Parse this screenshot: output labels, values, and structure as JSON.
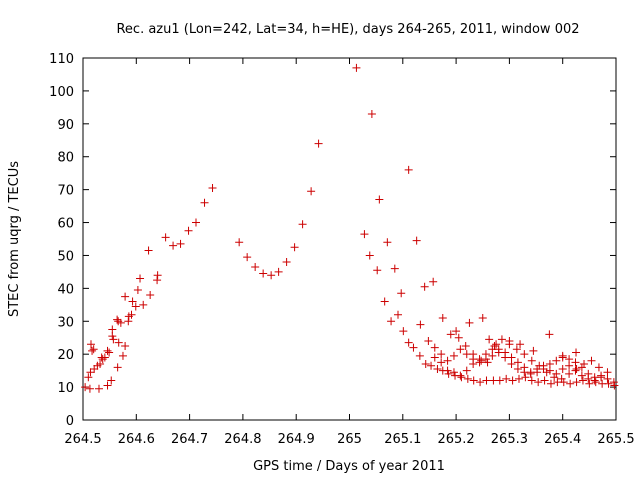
{
  "chart_data": {
    "type": "scatter",
    "title": "Rec. azu1 (Lon=242, Lat=34, h=HE), days 264-265, 2011, window 002",
    "xlabel": "GPS time / Days of year 2011",
    "ylabel": "STEC from uqrg / TECUs",
    "xlim": [
      264.5,
      265.5
    ],
    "ylim": [
      0,
      110
    ],
    "xticks": [
      "264.5",
      "264.6",
      "264.7",
      "264.8",
      "264.9",
      "265",
      "265.1",
      "265.2",
      "265.3",
      "265.4",
      "265.5"
    ],
    "yticks": [
      "0",
      "10",
      "20",
      "30",
      "40",
      "50",
      "60",
      "70",
      "80",
      "90",
      "100",
      "110"
    ],
    "grid": false,
    "legend": "none",
    "marker": "+",
    "color": "#cc0000",
    "series": [
      {
        "x": [
          264.504,
          264.513,
          264.517,
          264.527,
          264.535,
          264.546,
          264.555,
          264.566,
          264.579,
          264.593,
          264.607,
          264.623,
          264.64,
          264.655,
          264.669,
          264.683,
          264.698,
          264.712,
          264.728,
          264.743,
          264.793,
          264.808,
          264.823,
          264.838,
          264.853,
          264.867,
          264.882,
          264.897,
          264.912,
          264.928,
          264.942,
          265.013,
          265.028,
          265.042,
          265.056,
          265.071,
          265.085,
          265.097,
          265.111,
          265.126,
          265.141,
          265.157,
          264.514,
          264.52,
          264.537,
          264.549,
          264.557,
          264.564,
          264.571,
          264.586,
          264.599,
          264.613,
          264.626,
          264.639,
          264.515,
          264.53,
          264.546,
          264.555,
          264.567,
          264.579,
          264.591,
          264.603,
          264.51,
          264.521,
          264.532,
          264.541,
          264.553,
          264.565,
          264.575,
          264.585,
          265.038,
          265.052,
          265.066,
          265.078,
          265.091,
          265.101,
          265.111,
          265.12,
          265.132,
          265.143,
          265.153,
          265.165,
          265.175,
          265.186,
          265.198,
          265.21,
          265.222,
          265.233,
          265.245,
          265.257,
          265.27,
          265.282,
          265.294,
          265.306,
          265.318,
          265.33,
          265.342,
          265.354,
          265.366,
          265.378,
          265.39,
          265.402,
          265.414,
          265.426,
          265.438,
          265.45,
          265.462,
          265.474,
          265.486,
          265.497,
          265.133,
          265.148,
          265.16,
          265.172,
          265.184,
          265.196,
          265.208,
          265.22,
          265.232,
          265.244,
          265.256,
          265.268,
          265.28,
          265.292,
          265.304,
          265.316,
          265.328,
          265.34,
          265.352,
          265.364,
          265.376,
          265.388,
          265.4,
          265.412,
          265.424,
          265.436,
          265.448,
          265.46,
          265.472,
          265.484,
          265.16,
          265.172,
          265.184,
          265.196,
          265.208,
          265.22,
          265.232,
          265.244,
          265.256,
          265.268,
          265.28,
          265.292,
          265.304,
          265.316,
          265.328,
          265.34,
          265.352,
          265.364,
          265.376,
          265.388,
          265.4,
          265.412,
          265.424,
          265.436,
          265.448,
          265.46,
          265.472,
          265.484,
          265.496,
          265.19,
          265.205,
          265.218,
          265.232,
          265.247,
          265.259,
          265.272,
          265.286,
          265.3,
          265.314,
          265.328,
          265.342,
          265.356,
          265.37,
          265.384,
          265.398,
          265.412,
          265.426,
          265.44,
          265.454,
          265.468,
          265.175,
          265.2,
          265.225,
          265.25,
          265.262,
          265.275,
          265.3,
          265.32,
          265.345,
          265.375,
          265.4,
          265.425
        ],
        "y": [
          10.0,
          9.5,
          21.0,
          16.5,
          19.0,
          21.0,
          27.5,
          30.0,
          37.5,
          36.0,
          43.0,
          51.5,
          44.0,
          55.5,
          53.0,
          53.5,
          57.5,
          60.0,
          66.0,
          70.5,
          54.0,
          49.5,
          46.5,
          44.5,
          44.0,
          45.0,
          48.0,
          52.5,
          59.5,
          69.5,
          84.0,
          107.0,
          56.5,
          93.0,
          67.0,
          54.0,
          46.0,
          38.5,
          76.0,
          54.5,
          40.5,
          42.0,
          14.5,
          21.5,
          18.5,
          20.5,
          24.5,
          30.5,
          29.5,
          31.5,
          34.5,
          35.0,
          38.0,
          42.5,
          23.0,
          9.5,
          10.5,
          25.5,
          23.5,
          22.5,
          32.0,
          39.5,
          13.0,
          15.5,
          17.0,
          19.0,
          12.0,
          16.0,
          19.5,
          30.0,
          50.0,
          45.5,
          36.0,
          30.0,
          32.0,
          27.0,
          23.5,
          22.0,
          19.5,
          17.0,
          16.5,
          15.5,
          15.0,
          14.0,
          13.5,
          13.0,
          12.5,
          12.0,
          11.5,
          12.0,
          12.0,
          12.0,
          12.5,
          12.0,
          12.5,
          13.0,
          12.0,
          11.5,
          12.0,
          11.0,
          11.5,
          11.5,
          11.0,
          11.5,
          12.0,
          11.0,
          11.5,
          11.0,
          11.0,
          10.5,
          29.0,
          24.0,
          19.0,
          17.5,
          15.0,
          14.5,
          13.5,
          15.0,
          17.0,
          18.5,
          20.0,
          21.5,
          20.5,
          19.0,
          17.0,
          15.5,
          14.5,
          14.0,
          14.5,
          15.5,
          17.0,
          18.0,
          19.0,
          18.5,
          17.5,
          16.0,
          14.0,
          13.0,
          13.5,
          14.5,
          22.0,
          20.0,
          18.0,
          19.5,
          21.5,
          20.0,
          18.5,
          17.5,
          18.5,
          19.5,
          21.5,
          20.5,
          19.0,
          17.5,
          16.0,
          14.5,
          15.5,
          16.5,
          15.0,
          14.0,
          15.5,
          16.5,
          15.0,
          13.5,
          12.5,
          12.0,
          13.0,
          12.5,
          11.5,
          26.0,
          25.0,
          22.5,
          20.0,
          18.0,
          17.5,
          22.5,
          24.5,
          23.0,
          21.5,
          20.0,
          18.0,
          16.5,
          14.5,
          13.0,
          12.5,
          14.0,
          15.5,
          17.0,
          18.0,
          16.0,
          31.0,
          27.0,
          29.5,
          31.0,
          24.5,
          23.0,
          24.0,
          23.0,
          21.0,
          26.0,
          19.5,
          20.5
        ]
      }
    ]
  }
}
